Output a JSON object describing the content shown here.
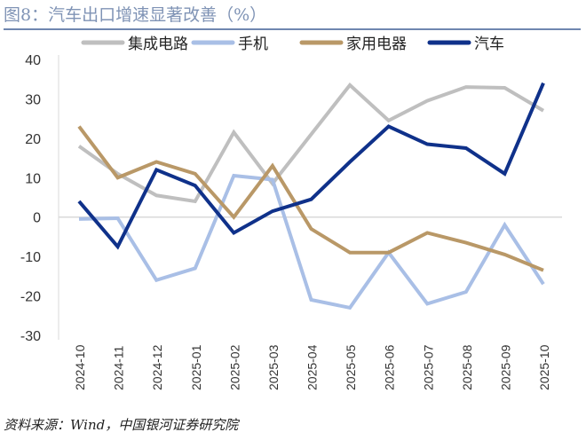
{
  "title": "图8：汽车出口增速显著改善（%）",
  "source": "资料来源：Wind，中国银河证券研究院",
  "chart_data": {
    "type": "line",
    "title": "图8：汽车出口增速显著改善（%）",
    "xlabel": "",
    "ylabel": "",
    "ylim": [
      -30,
      40
    ],
    "yticks": [
      40,
      30,
      20,
      10,
      0,
      -10,
      -20,
      -30
    ],
    "legend_position": "top",
    "grid": false,
    "categories": [
      "2024-10",
      "2024-11",
      "2024-12",
      "2025-01",
      "2025-02",
      "2025-03",
      "2025-04",
      "2025-05",
      "2025-06",
      "2025-07",
      "2025-08",
      "2025-09",
      "2025-10"
    ],
    "series": [
      {
        "name": "集成电路",
        "color": "#bfbfbf",
        "values": [
          18,
          11,
          5.5,
          4,
          21.5,
          8.5,
          21,
          33.5,
          24.5,
          29.5,
          33,
          32.8,
          27
        ]
      },
      {
        "name": "手机",
        "color": "#a9bfe6",
        "values": [
          -0.5,
          -0.3,
          -16,
          -13,
          10.5,
          9.5,
          -21,
          -23,
          -9,
          -22,
          -19,
          -2,
          -17
        ]
      },
      {
        "name": "家用电器",
        "color": "#b99867",
        "values": [
          23,
          10,
          14,
          11,
          0,
          13,
          -3,
          -9,
          -9,
          -4,
          -6.5,
          -9.5,
          -13.5
        ]
      },
      {
        "name": "汽车",
        "color": "#0f318a",
        "values": [
          4,
          -7.5,
          12,
          8,
          -4,
          1.5,
          4.5,
          14,
          23,
          18.5,
          17.5,
          11,
          34
        ]
      }
    ]
  }
}
